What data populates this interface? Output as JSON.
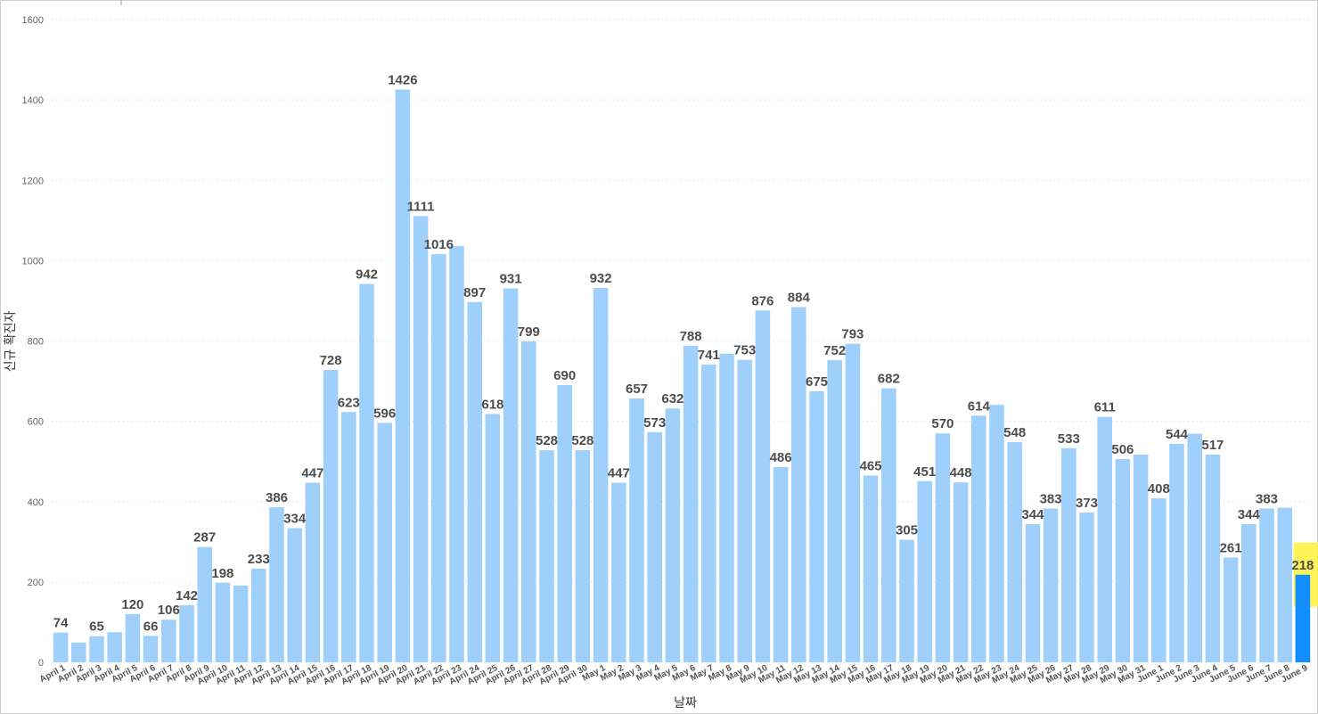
{
  "chart_data": {
    "type": "bar",
    "xlabel": "날짜",
    "ylabel": "신규 확진자",
    "ylim": [
      0,
      1600
    ],
    "yticks": [
      0,
      200,
      400,
      600,
      800,
      1000,
      1200,
      1400,
      1600
    ],
    "grid": true,
    "colors": {
      "bar": "#9fcffb",
      "highlight_bar": "#118dff",
      "highlight_box": "#fff23a"
    },
    "highlighted_category": "June 9",
    "categories": [
      "April 1",
      "April 2",
      "April 3",
      "April 4",
      "April 5",
      "April 6",
      "April 7",
      "April 8",
      "April 9",
      "April 10",
      "April 11",
      "April 12",
      "April 13",
      "April 14",
      "April 15",
      "April 16",
      "April 17",
      "April 18",
      "April 19",
      "April 20",
      "April 21",
      "April 22",
      "April 23",
      "April 24",
      "April 25",
      "April 26",
      "April 27",
      "April 28",
      "April 29",
      "April 30",
      "May 1",
      "May 2",
      "May 3",
      "May 4",
      "May 5",
      "May 6",
      "May 7",
      "May 8",
      "May 9",
      "May 10",
      "May 11",
      "May 12",
      "May 13",
      "May 14",
      "May 15",
      "May 16",
      "May 17",
      "May 18",
      "May 19",
      "May 20",
      "May 21",
      "May 22",
      "May 23",
      "May 24",
      "May 25",
      "May 26",
      "May 27",
      "May 28",
      "May 29",
      "May 30",
      "May 31",
      "June 1",
      "June 2",
      "June 3",
      "June 4",
      "June 5",
      "June 6",
      "June 7",
      "June 8",
      "June 9"
    ],
    "values": [
      74,
      49,
      65,
      75,
      120,
      66,
      106,
      142,
      287,
      198,
      191,
      233,
      386,
      334,
      447,
      728,
      623,
      942,
      596,
      1426,
      1111,
      1016,
      1036,
      897,
      618,
      931,
      799,
      528,
      690,
      528,
      932,
      447,
      657,
      573,
      632,
      788,
      741,
      768,
      753,
      876,
      486,
      884,
      675,
      752,
      793,
      465,
      682,
      305,
      451,
      570,
      448,
      614,
      641,
      548,
      344,
      383,
      533,
      373,
      611,
      506,
      517,
      408,
      544,
      569,
      517,
      261,
      344,
      383,
      385,
      218
    ],
    "data_labels": [
      "74",
      "",
      "65",
      "",
      "120",
      "66",
      "106",
      "142",
      "287",
      "198",
      "",
      "233",
      "386",
      "334",
      "447",
      "728",
      "623",
      "942",
      "596",
      "1426",
      "1111",
      "1016",
      "",
      "897",
      "618",
      "931",
      "799",
      "528",
      "690",
      "528",
      "932",
      "447",
      "657",
      "573",
      "632",
      "788",
      "741",
      "",
      "753",
      "876",
      "486",
      "884",
      "675",
      "752",
      "793",
      "465",
      "682",
      "305",
      "451",
      "570",
      "448",
      "614",
      "",
      "548",
      "344",
      "383",
      "533",
      "373",
      "611",
      "506",
      "",
      "408",
      "544",
      "",
      "517",
      "261",
      "344",
      "383",
      "",
      "218"
    ]
  }
}
